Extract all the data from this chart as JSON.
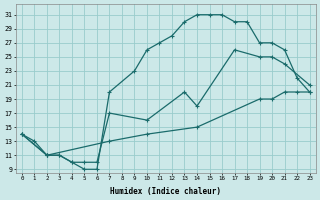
{
  "xlabel": "Humidex (Indice chaleur)",
  "bg_color": "#cce8e8",
  "grid_color": "#99cccc",
  "line_color": "#1a6b6b",
  "xlim": [
    -0.5,
    23.5
  ],
  "ylim": [
    8.5,
    32.5
  ],
  "xticks": [
    0,
    1,
    2,
    3,
    4,
    5,
    6,
    7,
    8,
    9,
    10,
    11,
    12,
    13,
    14,
    15,
    16,
    17,
    18,
    19,
    20,
    21,
    22,
    23
  ],
  "yticks": [
    9,
    11,
    13,
    15,
    17,
    19,
    21,
    23,
    25,
    27,
    29,
    31
  ],
  "line1_x": [
    0,
    1,
    2,
    3,
    4,
    5,
    6,
    7,
    9,
    10,
    11,
    12,
    13,
    14,
    15,
    16,
    17,
    18,
    19,
    20,
    21,
    22,
    23
  ],
  "line1_y": [
    14,
    13,
    11,
    11,
    10,
    9,
    9,
    20,
    23,
    26,
    27,
    28,
    30,
    31,
    31,
    31,
    30,
    30,
    27,
    27,
    26,
    22,
    20
  ],
  "line2_x": [
    0,
    2,
    3,
    4,
    5,
    6,
    7,
    10,
    13,
    14,
    17,
    19,
    20,
    21,
    23
  ],
  "line2_y": [
    14,
    11,
    11,
    10,
    10,
    10,
    17,
    16,
    20,
    18,
    26,
    25,
    25,
    24,
    21
  ],
  "line3_x": [
    0,
    2,
    7,
    10,
    14,
    19,
    20,
    21,
    22,
    23
  ],
  "line3_y": [
    14,
    11,
    13,
    14,
    15,
    19,
    19,
    20,
    20,
    20
  ]
}
